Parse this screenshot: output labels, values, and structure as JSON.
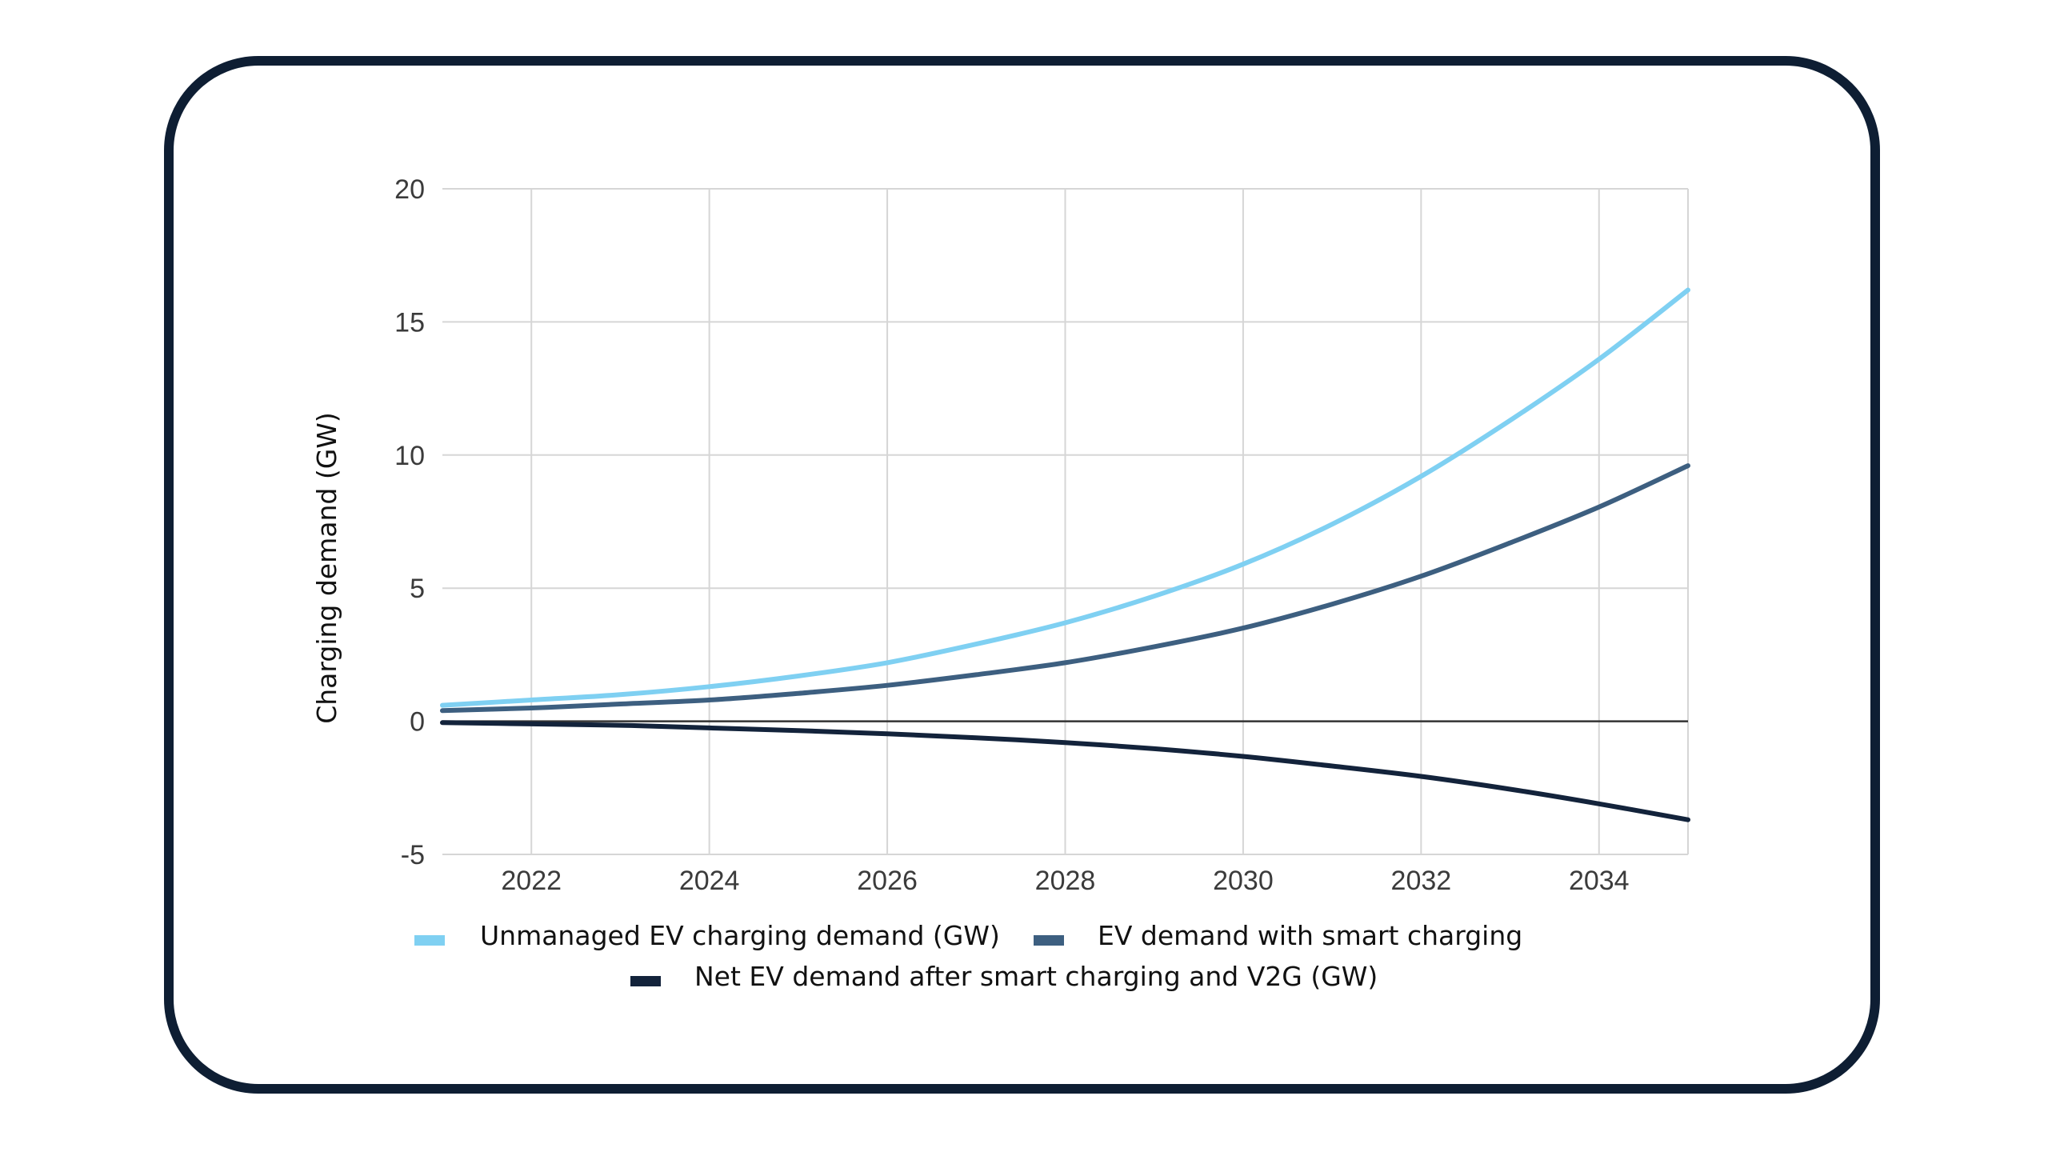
{
  "chart_data": {
    "type": "line",
    "title": "",
    "xlabel": "",
    "ylabel": "Charging demand (GW)",
    "xlim": [
      2021,
      2035
    ],
    "ylim": [
      -5,
      20
    ],
    "x_ticks": [
      "2022",
      "2024",
      "2026",
      "2028",
      "2030",
      "2032",
      "2034"
    ],
    "y_ticks": [
      "-5",
      "0",
      "5",
      "10",
      "15",
      "20"
    ],
    "grid": true,
    "legend_position": "bottom",
    "x": [
      2021,
      2022,
      2023,
      2024,
      2025,
      2026,
      2027,
      2028,
      2029,
      2030,
      2031,
      2032,
      2033,
      2034,
      2035
    ],
    "series": [
      {
        "name": "Unmanaged EV charging demand (GW)",
        "color": "#7fd0f2",
        "values": [
          0.6,
          0.8,
          1.0,
          1.3,
          1.7,
          2.2,
          2.9,
          3.7,
          4.7,
          5.9,
          7.4,
          9.2,
          11.3,
          13.6,
          16.2
        ]
      },
      {
        "name": "EV demand with smart charging",
        "color": "#3d5f80",
        "values": [
          0.4,
          0.5,
          0.65,
          0.8,
          1.05,
          1.35,
          1.75,
          2.2,
          2.8,
          3.5,
          4.4,
          5.45,
          6.7,
          8.05,
          9.6
        ]
      },
      {
        "name": "Net EV demand after smart charging and V2G (GW)",
        "color": "#13233b",
        "values": [
          -0.05,
          -0.1,
          -0.15,
          -0.25,
          -0.35,
          -0.47,
          -0.62,
          -0.8,
          -1.03,
          -1.32,
          -1.68,
          -2.07,
          -2.55,
          -3.1,
          -3.7
        ]
      }
    ]
  }
}
